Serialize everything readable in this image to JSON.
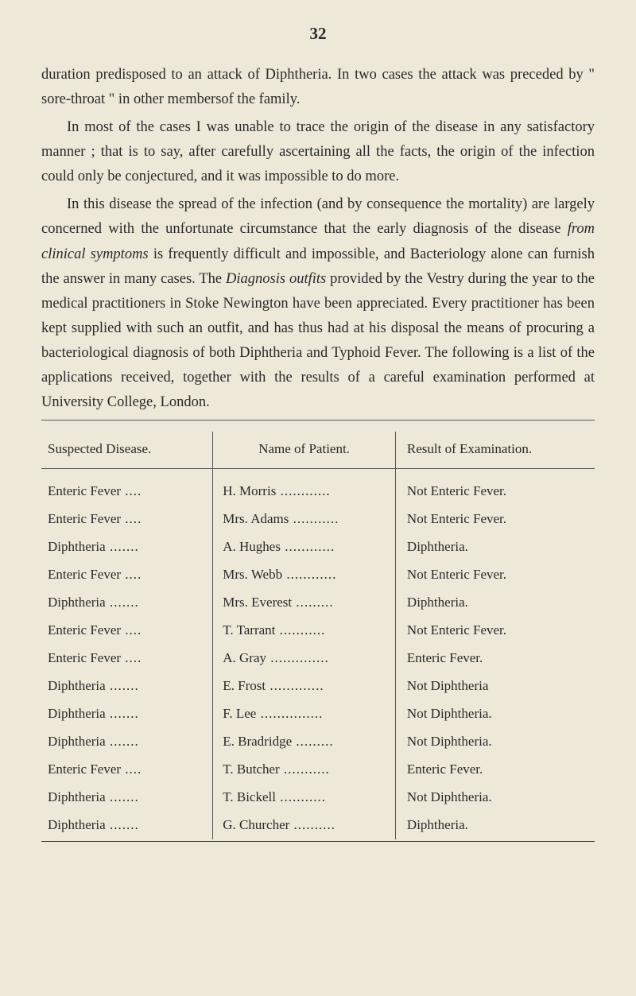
{
  "page_number": "32",
  "paragraphs": {
    "p1": "duration predisposed to an attack of Diphtheria. In two cases the attack was preceded by \" sore-throat \" in other membersof the family.",
    "p2_a": "In most of the cases I was unable to trace the origin of the disease in any satisfactory manner ; that is to say, after carefully ascertaining all the facts, the origin of the infection could only be conjectured, and it was impossible to do more.",
    "p3_a": "In this disease the spread of the infection (and by consequence the mortality) are largely concerned with the unfortunate circum­stance that the early diagnosis of the disease ",
    "p3_i1": "from clinical symptoms",
    "p3_b": " is frequently difficult and impossible, and Bacteriology alone can furnish the answer in many cases. The ",
    "p3_i2": "Diagnosis outfits",
    "p3_c": " provided by the Vestry during the year to the medical practitioners in Stoke Newington have been appreciated. Every practitioner has been kept supplied with such an outfit, and has thus had at his disposal the means of procuring a bacteriological diagnosis of both Diphtheria and Typhoid Fever. The following is a list of the applications received, together with the results of a careful examination performed at University College, London."
  },
  "table": {
    "headers": {
      "col1": "Suspected Disease.",
      "col2": "Name of Patient.",
      "col3": "Result of Examination."
    },
    "rows": [
      {
        "disease": "Enteric Fever",
        "patient": "H. Morris",
        "result": "Not Enteric Fever."
      },
      {
        "disease": "Enteric Fever",
        "patient": "Mrs. Adams",
        "result": "Not Enteric Fever."
      },
      {
        "disease": "Diphtheria",
        "patient": "A. Hughes",
        "result": "Diphtheria."
      },
      {
        "disease": "Enteric Fever",
        "patient": "Mrs. Webb",
        "result": "Not Enteric Fever."
      },
      {
        "disease": "Diphtheria",
        "patient": "Mrs. Everest",
        "result": "Diphtheria."
      },
      {
        "disease": "Enteric Fever",
        "patient": "T. Tarrant",
        "result": "Not Enteric Fever."
      },
      {
        "disease": "Enteric Fever",
        "patient": "A. Gray",
        "result": "Enteric Fever."
      },
      {
        "disease": "Diphtheria",
        "patient": "E. Frost",
        "result": "Not Diphtheria"
      },
      {
        "disease": "Diphtheria",
        "patient": "F. Lee",
        "result": "Not Diphtheria."
      },
      {
        "disease": "Diphtheria",
        "patient": "E. Bradridge",
        "result": "Not Diphtheria."
      },
      {
        "disease": "Enteric Fever",
        "patient": "T. Butcher",
        "result": "Enteric Fever."
      },
      {
        "disease": "Diphtheria",
        "patient": "T. Bickell",
        "result": "Not Diphtheria."
      },
      {
        "disease": "Diphtheria",
        "patient": "G. Churcher",
        "result": "Diphtheria."
      }
    ],
    "dot_widths": {
      "disease_col": 17,
      "patient_col": 21
    }
  }
}
